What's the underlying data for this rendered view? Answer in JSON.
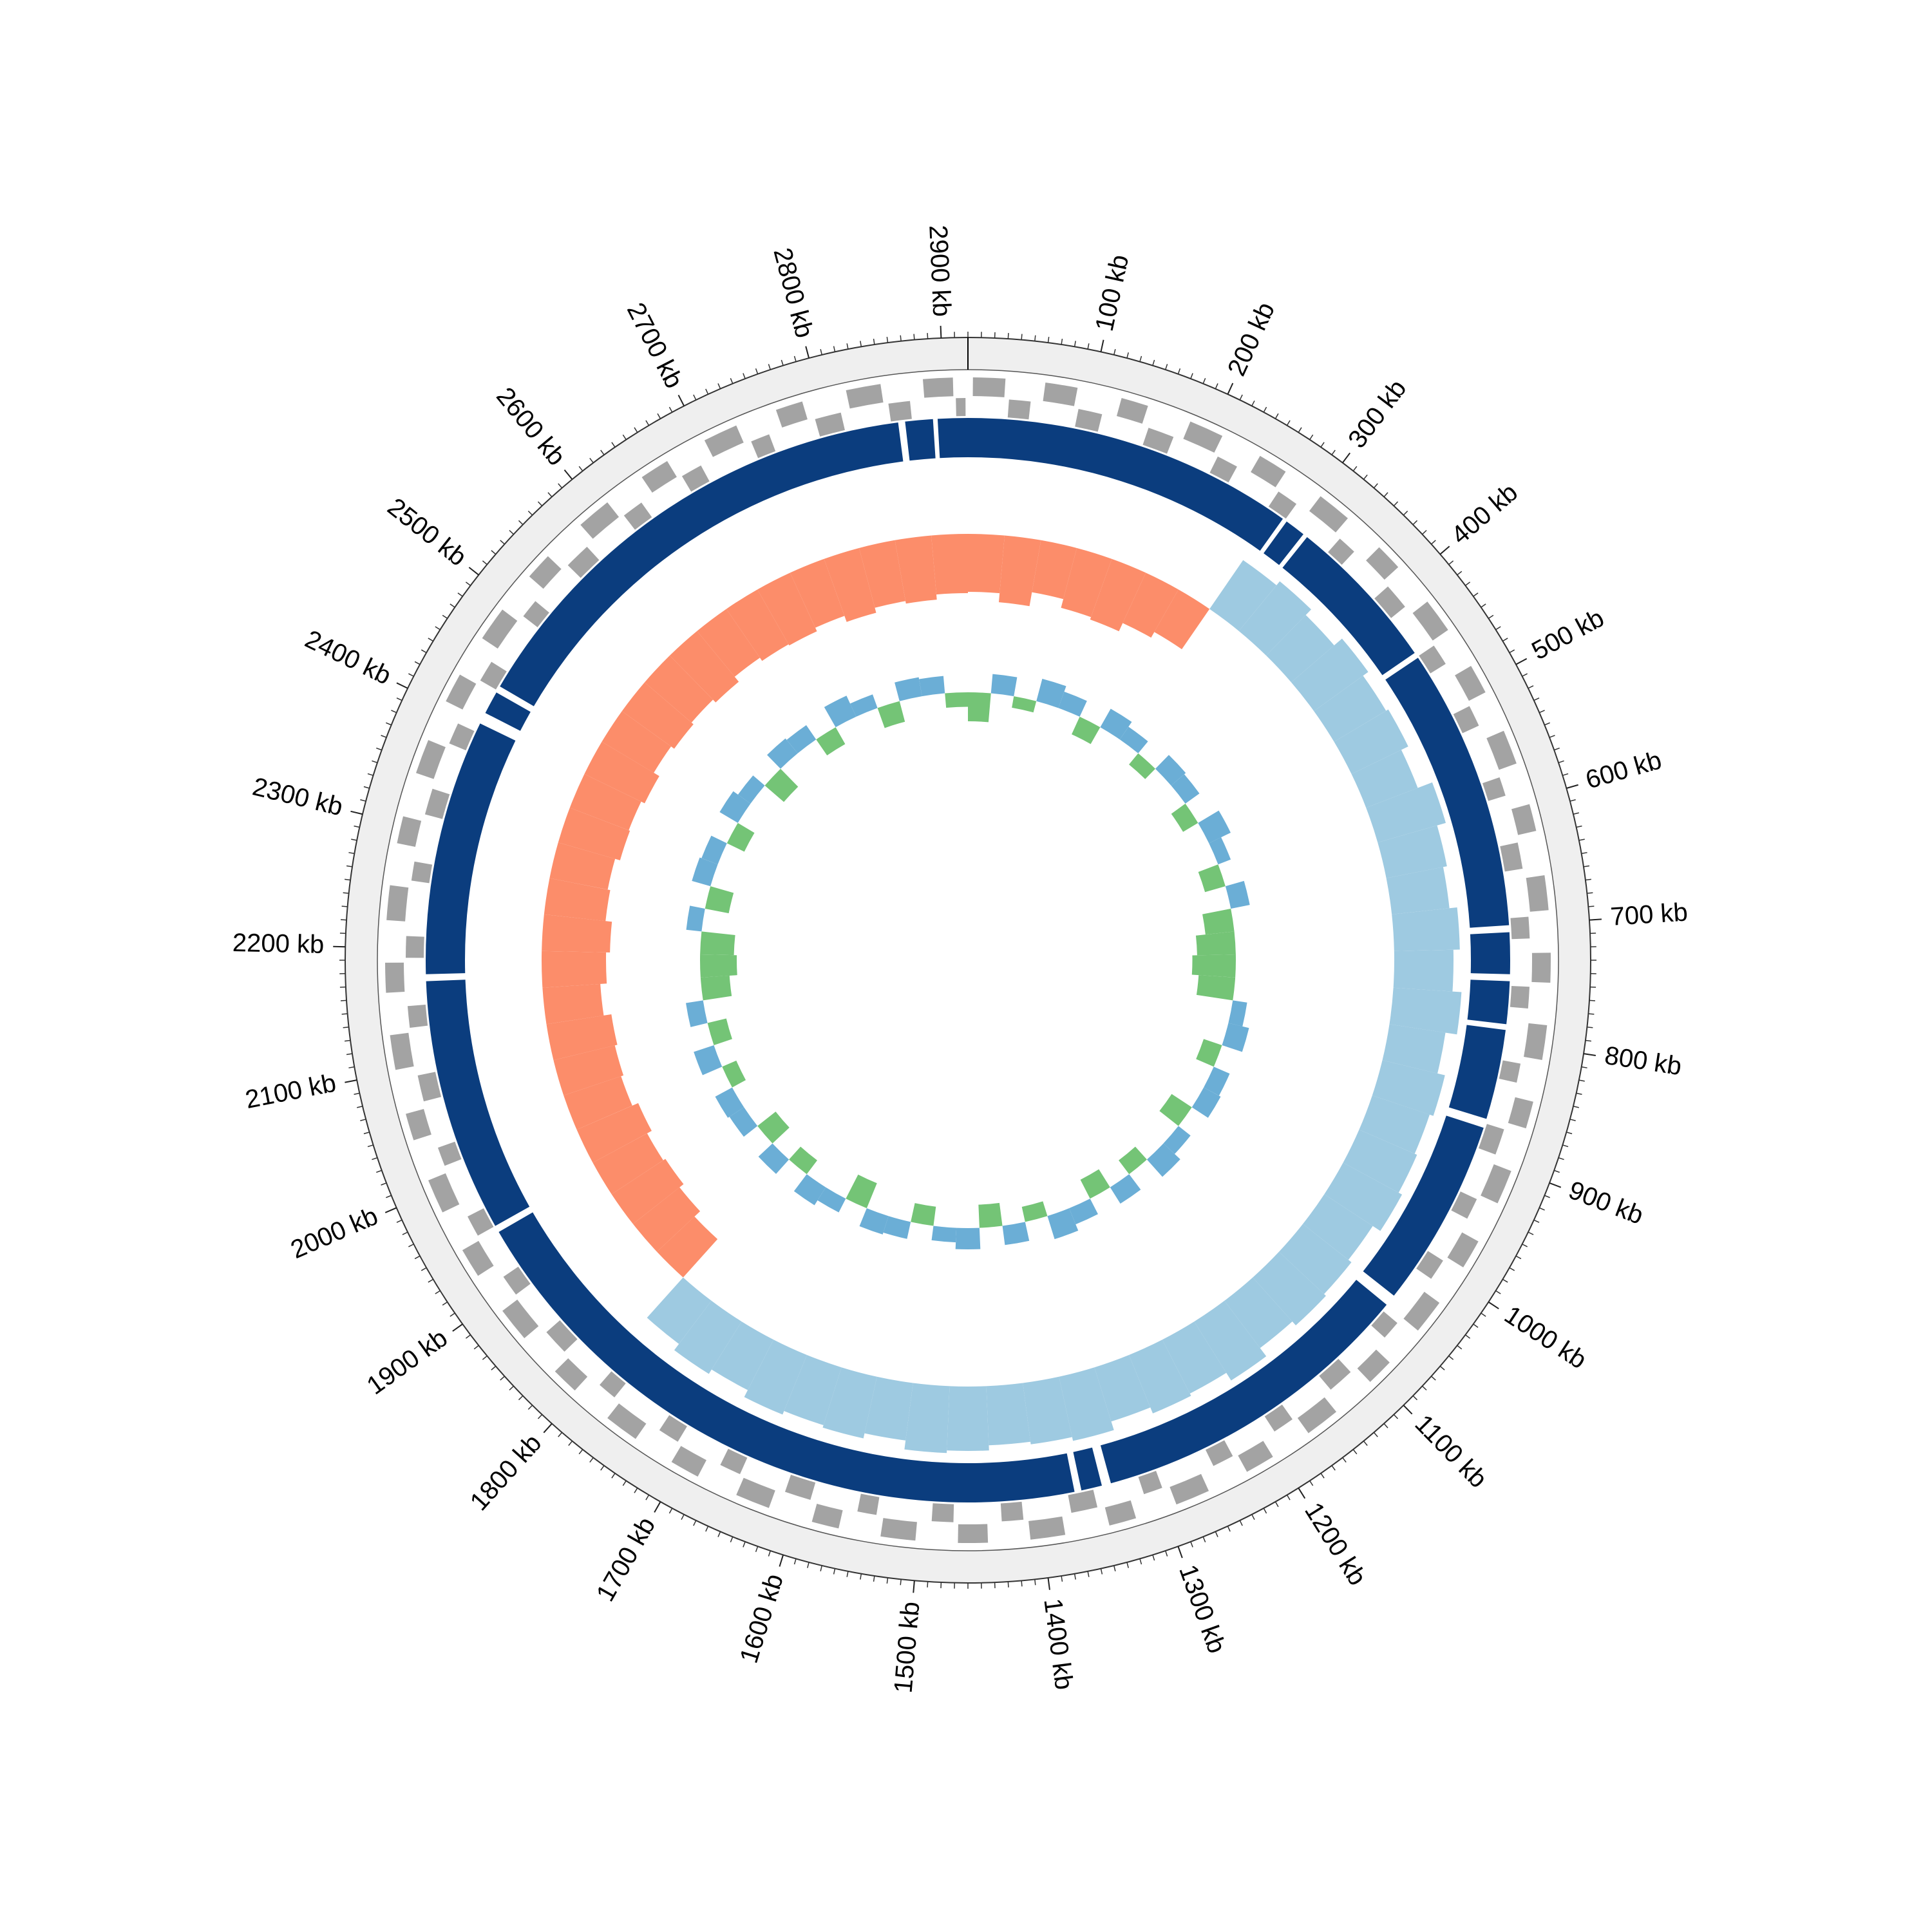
{
  "chart_data": {
    "type": "circos",
    "genome_length": 2920,
    "minor_tick_step": 10,
    "ticks": [
      {
        "value": 100,
        "label": "100 kb"
      },
      {
        "value": 200,
        "label": "200 kb"
      },
      {
        "value": 300,
        "label": "300 kb"
      },
      {
        "value": 400,
        "label": "400 kb"
      },
      {
        "value": 500,
        "label": "500 kb"
      },
      {
        "value": 600,
        "label": "600 kb"
      },
      {
        "value": 700,
        "label": "700 kb"
      },
      {
        "value": 800,
        "label": "800 kb"
      },
      {
        "value": 900,
        "label": "900 kb"
      },
      {
        "value": 1000,
        "label": "1000 kb"
      },
      {
        "value": 1100,
        "label": "1100 kb"
      },
      {
        "value": 1200,
        "label": "1200 kb"
      },
      {
        "value": 1300,
        "label": "1300 kb"
      },
      {
        "value": 1400,
        "label": "1400 kb"
      },
      {
        "value": 1500,
        "label": "1500 kb"
      },
      {
        "value": 1600,
        "label": "1600 kb"
      },
      {
        "value": 1700,
        "label": "1700 kb"
      },
      {
        "value": 1800,
        "label": "1800 kb"
      },
      {
        "value": 1900,
        "label": "1900 kb"
      },
      {
        "value": 2000,
        "label": "2000 kb"
      },
      {
        "value": 2100,
        "label": "2100 kb"
      },
      {
        "value": 2200,
        "label": "2200 kb"
      },
      {
        "value": 2300,
        "label": "2300 kb"
      },
      {
        "value": 2400,
        "label": "2400 kb"
      },
      {
        "value": 2500,
        "label": "2500 kb"
      },
      {
        "value": 2600,
        "label": "2600 kb"
      },
      {
        "value": 2700,
        "label": "2700 kb"
      },
      {
        "value": 2800,
        "label": "2800 kb"
      },
      {
        "value": 2900,
        "label": "2900 kb"
      }
    ],
    "genes": {
      "color": "#a3a3a3",
      "features": [
        [
          4,
          30,
          1
        ],
        [
          34,
          52,
          -1
        ],
        [
          62,
          88,
          1
        ],
        [
          92,
          112,
          -1
        ],
        [
          124,
          146,
          1
        ],
        [
          152,
          174,
          -1
        ],
        [
          182,
          210,
          1
        ],
        [
          214,
          232,
          -1
        ],
        [
          244,
          268,
          1
        ],
        [
          272,
          290,
          -1
        ],
        [
          302,
          330,
          1
        ],
        [
          336,
          352,
          -1
        ],
        [
          364,
          386,
          1
        ],
        [
          392,
          414,
          -1
        ],
        [
          422,
          450,
          1
        ],
        [
          454,
          472,
          -1
        ],
        [
          484,
          508,
          1
        ],
        [
          512,
          530,
          -1
        ],
        [
          542,
          570,
          1
        ],
        [
          576,
          592,
          -1
        ],
        [
          604,
          626,
          1
        ],
        [
          632,
          654,
          -1
        ],
        [
          662,
          690,
          1
        ],
        [
          694,
          712,
          -1
        ],
        [
          724,
          748,
          1
        ],
        [
          752,
          770,
          -1
        ],
        [
          782,
          810,
          1
        ],
        [
          816,
          832,
          -1
        ],
        [
          844,
          866,
          1
        ],
        [
          872,
          894,
          -1
        ],
        [
          902,
          930,
          1
        ],
        [
          934,
          952,
          -1
        ],
        [
          964,
          988,
          1
        ],
        [
          992,
          1010,
          -1
        ],
        [
          1022,
          1050,
          1
        ],
        [
          1056,
          1072,
          -1
        ],
        [
          1084,
          1106,
          1
        ],
        [
          1112,
          1134,
          -1
        ],
        [
          1142,
          1170,
          1
        ],
        [
          1174,
          1192,
          -1
        ],
        [
          1204,
          1228,
          1
        ],
        [
          1232,
          1250,
          -1
        ],
        [
          1262,
          1290,
          1
        ],
        [
          1296,
          1312,
          -1
        ],
        [
          1324,
          1346,
          1
        ],
        [
          1352,
          1374,
          -1
        ],
        [
          1382,
          1410,
          1
        ],
        [
          1414,
          1432,
          -1
        ],
        [
          1444,
          1468,
          1
        ],
        [
          1472,
          1490,
          -1
        ],
        [
          1502,
          1530,
          1
        ],
        [
          1536,
          1552,
          -1
        ],
        [
          1564,
          1586,
          1
        ],
        [
          1592,
          1614,
          -1
        ],
        [
          1622,
          1650,
          1
        ],
        [
          1654,
          1672,
          -1
        ],
        [
          1684,
          1708,
          1
        ],
        [
          1712,
          1730,
          -1
        ],
        [
          1742,
          1770,
          1
        ],
        [
          1776,
          1792,
          -1
        ],
        [
          1804,
          1826,
          1
        ],
        [
          1832,
          1854,
          -1
        ],
        [
          1862,
          1890,
          1
        ],
        [
          1894,
          1912,
          -1
        ],
        [
          1924,
          1948,
          1
        ],
        [
          1952,
          1970,
          -1
        ],
        [
          1982,
          2010,
          1
        ],
        [
          2016,
          2032,
          -1
        ],
        [
          2044,
          2066,
          1
        ],
        [
          2072,
          2094,
          -1
        ],
        [
          2102,
          2130,
          1
        ],
        [
          2134,
          2152,
          -1
        ],
        [
          2164,
          2188,
          1
        ],
        [
          2192,
          2210,
          -1
        ],
        [
          2222,
          2250,
          1
        ],
        [
          2256,
          2272,
          -1
        ],
        [
          2284,
          2306,
          1
        ],
        [
          2312,
          2334,
          -1
        ],
        [
          2342,
          2370,
          1
        ],
        [
          2374,
          2392,
          -1
        ],
        [
          2404,
          2428,
          1
        ],
        [
          2432,
          2450,
          -1
        ],
        [
          2462,
          2490,
          1
        ],
        [
          2496,
          2512,
          -1
        ],
        [
          2524,
          2546,
          1
        ],
        [
          2552,
          2574,
          -1
        ],
        [
          2582,
          2610,
          1
        ],
        [
          2614,
          2632,
          -1
        ],
        [
          2644,
          2668,
          1
        ],
        [
          2672,
          2690,
          -1
        ],
        [
          2702,
          2730,
          1
        ],
        [
          2736,
          2752,
          -1
        ],
        [
          2764,
          2786,
          1
        ],
        [
          2792,
          2814,
          -1
        ],
        [
          2822,
          2850,
          1
        ],
        [
          2854,
          2872,
          -1
        ],
        [
          2884,
          2908,
          1
        ],
        [
          2910,
          2918,
          -1
        ]
      ]
    },
    "contigs": {
      "color": "#0b3d7e",
      "segments": [
        [
          0,
          288
        ],
        [
          292,
          310
        ],
        [
          314,
          450
        ],
        [
          455,
          700
        ],
        [
          706,
          742
        ],
        [
          748,
          785
        ],
        [
          790,
          868
        ],
        [
          876,
          1040
        ],
        [
          1050,
          1336
        ],
        [
          1344,
          1362
        ],
        [
          1368,
          1946
        ],
        [
          1952,
          2172
        ],
        [
          2178,
          2400
        ],
        [
          2410,
          2430
        ],
        [
          2436,
          2860
        ],
        [
          2866,
          2890
        ],
        [
          2894,
          2920
        ]
      ]
    },
    "gc_skew": {
      "bin_size": 40,
      "positive_color": "#fc8d6a",
      "negative_color": "#9ecae1",
      "values": [
        0.045,
        0.052,
        0.041,
        0.048,
        0.05,
        0.043,
        0.038,
        -0.046,
        -0.05,
        -0.044,
        -0.052,
        -0.047,
        -0.049,
        -0.043,
        -0.055,
        -0.048,
        -0.045,
        -0.051,
        -0.046,
        -0.053,
        -0.044,
        -0.05,
        -0.047,
        -0.049,
        -0.052,
        -0.045,
        -0.048,
        -0.05,
        -0.046,
        -0.054,
        -0.047,
        -0.049,
        -0.044,
        -0.051,
        -0.048,
        -0.046,
        -0.05,
        -0.052,
        -0.045,
        -0.049,
        -0.047,
        -0.05,
        -0.044,
        -0.048,
        -0.042,
        0.04,
        0.046,
        0.05,
        0.048,
        0.052,
        0.047,
        0.049,
        0.051,
        0.045,
        0.05,
        0.053,
        0.048,
        0.046,
        0.05,
        0.049,
        0.052,
        0.047,
        0.05,
        0.048,
        0.051,
        0.046,
        0.049,
        0.05,
        0.047,
        0.052,
        0.048,
        0.05,
        0.046
      ]
    },
    "gc_content": {
      "bin_size": 40,
      "positive_color": "#6baed6",
      "negative_color": "#74c476",
      "values": [
        -0.03,
        0.02,
        -0.012,
        0.024,
        0.018,
        -0.02,
        0.022,
        0.016,
        -0.015,
        0.02,
        0.018,
        -0.018,
        0.025,
        0.014,
        -0.022,
        0.02,
        -0.03,
        -0.04,
        -0.045,
        -0.038,
        0.015,
        0.022,
        -0.02,
        0.018,
        0.02,
        -0.025,
        0.016,
        0.024,
        -0.018,
        0.02,
        -0.022,
        0.018,
        0.025,
        -0.016,
        0.02,
        -0.024,
        0.022,
        0.015,
        -0.02,
        0.018,
        0.02,
        -0.028,
        0.016,
        0.022,
        -0.018,
        0.02,
        -0.024,
        0.018,
        0.02,
        -0.016,
        0.022,
        -0.02,
        0.018,
        -0.03,
        -0.038,
        -0.035,
        0.016,
        -0.025,
        0.02,
        0.018,
        -0.02,
        0.022,
        0.016,
        -0.026,
        0.02,
        0.018,
        -0.02,
        0.024,
        0.015,
        -0.022,
        0.02,
        0.018,
        -0.015
      ]
    }
  }
}
